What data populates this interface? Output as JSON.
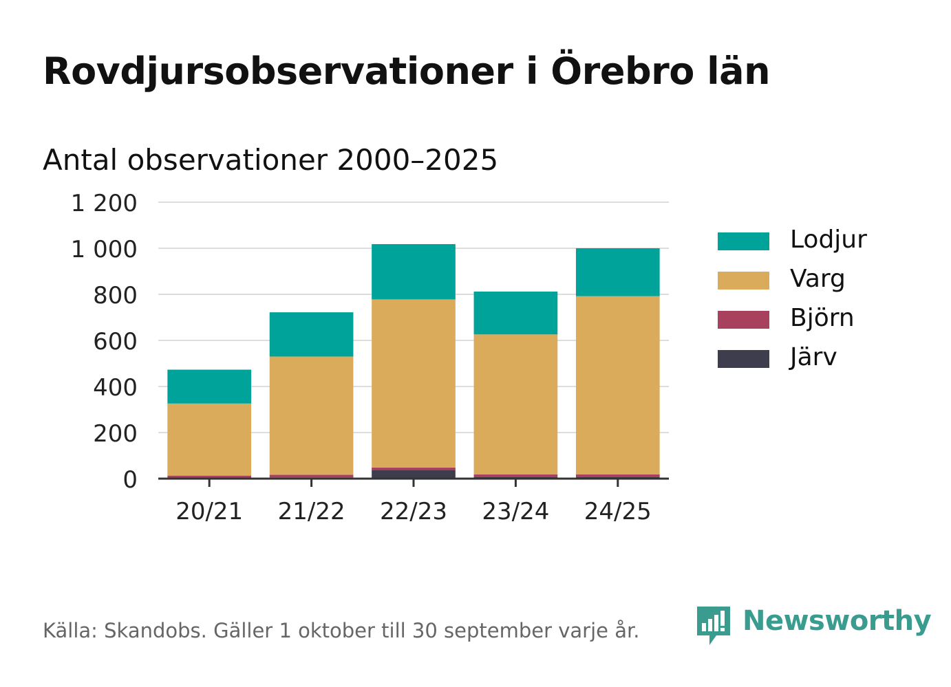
{
  "header": {
    "title": "Rovdjursobservationer i Örebro län",
    "subtitle": "Antal observationer 2000–2025"
  },
  "chart_data": {
    "type": "bar",
    "stacked": true,
    "title": "Rovdjursobservationer i Örebro län",
    "subtitle": "Antal observationer 2000–2025",
    "xlabel": "",
    "ylabel": "",
    "ylim": [
      0,
      1200
    ],
    "yticks": [
      0,
      200,
      400,
      600,
      800,
      1000,
      1200
    ],
    "ytick_labels": [
      "0",
      "200",
      "400",
      "600",
      "800",
      "1 000",
      "1 200"
    ],
    "grid": true,
    "legend_position": "right",
    "categories": [
      "20/21",
      "21/22",
      "22/23",
      "23/24",
      "24/25"
    ],
    "series": [
      {
        "name": "Järv",
        "color": "#3d3d4d",
        "values": [
          3,
          5,
          38,
          6,
          6
        ]
      },
      {
        "name": "Björn",
        "color": "#a8415e",
        "values": [
          10,
          12,
          10,
          12,
          12
        ]
      },
      {
        "name": "Varg",
        "color": "#d9ab5a",
        "values": [
          313,
          513,
          730,
          608,
          774
        ]
      },
      {
        "name": "Lodjur",
        "color": "#00a39a",
        "values": [
          147,
          192,
          240,
          186,
          208
        ]
      }
    ]
  },
  "legend": {
    "items": [
      {
        "label": "Lodjur",
        "color": "#00a39a"
      },
      {
        "label": "Varg",
        "color": "#d9ab5a"
      },
      {
        "label": "Björn",
        "color": "#a8415e"
      },
      {
        "label": "Järv",
        "color": "#3d3d4d"
      }
    ]
  },
  "footer": {
    "source": "Källa: Skandobs. Gäller 1 oktober till 30 september varje år.",
    "brand": "Newsworthy",
    "brand_color": "#3a9c8f"
  }
}
